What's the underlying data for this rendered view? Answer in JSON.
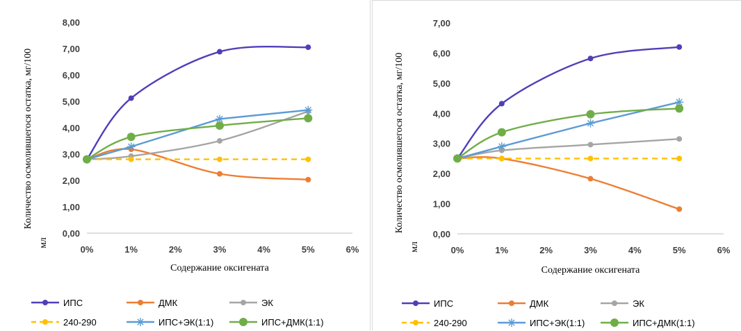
{
  "chart_data": [
    {
      "type": "line",
      "categories": [
        "0%",
        "1%",
        "3%",
        "5%"
      ],
      "x": [
        0,
        1,
        3,
        5
      ],
      "xlim": [
        0,
        6
      ],
      "xticks": [
        "0%",
        "1%",
        "2%",
        "3%",
        "4%",
        "5%",
        "6%"
      ],
      "ylim": [
        0,
        8
      ],
      "yticks": [
        "0,00",
        "1,00",
        "2,00",
        "3,00",
        "4,00",
        "5,00",
        "6,00",
        "7,00",
        "8,00"
      ],
      "xlabel": "Содержание оксигената",
      "ylabel": "Количество осмолившегося остатка, мг/100 мл",
      "grid": false,
      "legend_position": "bottom",
      "series": [
        {
          "name": "ИПС",
          "values": [
            2.8,
            5.12,
            6.88,
            7.05
          ],
          "color": "#4f3fb8",
          "marker": "circle",
          "style": "solid"
        },
        {
          "name": "ДМК",
          "values": [
            2.8,
            3.18,
            2.25,
            2.03
          ],
          "color": "#ed7d31",
          "marker": "circle",
          "style": "solid"
        },
        {
          "name": "ЭК",
          "values": [
            2.8,
            2.92,
            3.5,
            4.62
          ],
          "color": "#a5a5a5",
          "marker": "circle",
          "style": "solid"
        },
        {
          "name": "240-290",
          "values": [
            2.8,
            2.8,
            2.8,
            2.8
          ],
          "color": "#ffc000",
          "marker": "circle",
          "style": "dashed"
        },
        {
          "name": "ИПС+ЭК(1:1)",
          "values": [
            2.8,
            3.28,
            4.33,
            4.67
          ],
          "color": "#5b9bd5",
          "marker": "star",
          "style": "solid"
        },
        {
          "name": "ИПС+ДМК(1:1)",
          "values": [
            2.8,
            3.65,
            4.08,
            4.36
          ],
          "color": "#70ad47",
          "marker": "bigcircle",
          "style": "solid"
        }
      ]
    },
    {
      "type": "line",
      "categories": [
        "0%",
        "1%",
        "3%",
        "5%"
      ],
      "x": [
        0,
        1,
        3,
        5
      ],
      "xlim": [
        0,
        6
      ],
      "xticks": [
        "0%",
        "1%",
        "2%",
        "3%",
        "4%",
        "5%",
        "6%"
      ],
      "ylim": [
        0,
        7
      ],
      "yticks": [
        "0,00",
        "1,00",
        "2,00",
        "3,00",
        "4,00",
        "5,00",
        "6,00",
        "7,00"
      ],
      "xlabel": "Содержание оксигената",
      "ylabel": "Количество осмолившегося остатка, мг/100 мл",
      "grid": false,
      "legend_position": "bottom",
      "series": [
        {
          "name": "ИПС",
          "values": [
            2.5,
            4.32,
            5.82,
            6.2
          ],
          "color": "#4f3fb8",
          "marker": "circle",
          "style": "solid"
        },
        {
          "name": "ДМК",
          "values": [
            2.5,
            2.5,
            1.83,
            0.82
          ],
          "color": "#ed7d31",
          "marker": "circle",
          "style": "solid"
        },
        {
          "name": "ЭК",
          "values": [
            2.5,
            2.77,
            2.96,
            3.15
          ],
          "color": "#a5a5a5",
          "marker": "circle",
          "style": "solid"
        },
        {
          "name": "240-290",
          "values": [
            2.5,
            2.5,
            2.5,
            2.5
          ],
          "color": "#ffc000",
          "marker": "circle",
          "style": "dashed"
        },
        {
          "name": "ИПС+ЭК(1:1)",
          "values": [
            2.5,
            2.9,
            3.67,
            4.37
          ],
          "color": "#5b9bd5",
          "marker": "star",
          "style": "solid"
        },
        {
          "name": "ИПС+ДМК(1:1)",
          "values": [
            2.5,
            3.37,
            3.97,
            4.16
          ],
          "color": "#70ad47",
          "marker": "bigcircle",
          "style": "solid"
        }
      ]
    }
  ]
}
